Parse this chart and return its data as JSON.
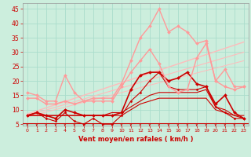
{
  "xlabel": "Vent moyen/en rafales ( km/h )",
  "bg_color": "#cceedd",
  "grid_color": "#aaddcc",
  "text_color": "#cc0000",
  "xlim": [
    -0.5,
    23.5
  ],
  "ylim": [
    4.5,
    47
  ],
  "yticks": [
    5,
    10,
    15,
    20,
    25,
    30,
    35,
    40,
    45
  ],
  "x_ticks": [
    0,
    1,
    2,
    3,
    4,
    5,
    6,
    7,
    8,
    9,
    10,
    11,
    12,
    13,
    14,
    15,
    16,
    17,
    18,
    19,
    20,
    21,
    22,
    23
  ],
  "series": [
    {
      "x": [
        0,
        1,
        2,
        3,
        4,
        5,
        6,
        7,
        8,
        9,
        10,
        11,
        12,
        13,
        14,
        15,
        16,
        17,
        18,
        19,
        20,
        21,
        22,
        23
      ],
      "y": [
        8,
        9,
        8,
        7,
        10,
        9,
        8,
        8,
        8,
        8,
        9,
        17,
        22,
        23,
        23,
        20,
        21,
        23,
        19,
        18,
        12,
        15,
        9,
        7
      ],
      "color": "#cc0000",
      "lw": 1.2,
      "marker": "D",
      "ms": 2.0
    },
    {
      "x": [
        0,
        1,
        2,
        3,
        4,
        5,
        6,
        7,
        8,
        9,
        10,
        11,
        12,
        13,
        14,
        15,
        16,
        17,
        18,
        19,
        20,
        21,
        22,
        23
      ],
      "y": [
        8,
        9,
        7,
        6,
        9,
        6,
        5,
        7,
        5,
        5,
        8,
        13,
        16,
        20,
        23,
        18,
        17,
        17,
        17,
        18,
        11,
        9,
        7,
        7
      ],
      "color": "#cc0000",
      "lw": 0.8,
      "marker": "D",
      "ms": 1.5
    },
    {
      "x": [
        0,
        1,
        2,
        3,
        4,
        5,
        6,
        7,
        8,
        9,
        10,
        11,
        12,
        13,
        14,
        15,
        16,
        17,
        18,
        19,
        20,
        21,
        22,
        23
      ],
      "y": [
        8,
        8,
        8,
        8,
        8,
        8,
        8,
        8,
        8,
        9,
        9,
        11,
        13,
        15,
        16,
        16,
        16,
        16,
        16,
        17,
        11,
        10,
        8,
        8
      ],
      "color": "#cc0000",
      "lw": 0.8,
      "marker": null,
      "ms": 0
    },
    {
      "x": [
        0,
        1,
        2,
        3,
        4,
        5,
        6,
        7,
        8,
        9,
        10,
        11,
        12,
        13,
        14,
        15,
        16,
        17,
        18,
        19,
        20,
        21,
        22,
        23
      ],
      "y": [
        8,
        8,
        8,
        8,
        8,
        8,
        8,
        8,
        8,
        8,
        8,
        10,
        12,
        13,
        14,
        14,
        14,
        14,
        14,
        14,
        10,
        9,
        8,
        7
      ],
      "color": "#cc0000",
      "lw": 0.8,
      "marker": null,
      "ms": 0
    },
    {
      "x": [
        0,
        1,
        2,
        3,
        4,
        5,
        6,
        7,
        8,
        9,
        10,
        11,
        12,
        13,
        14,
        15,
        16,
        17,
        18,
        19,
        20,
        21,
        22,
        23
      ],
      "y": [
        16,
        15,
        13,
        13,
        22,
        16,
        13,
        14,
        14,
        14,
        19,
        27,
        35,
        39,
        45,
        37,
        39,
        37,
        33,
        34,
        20,
        24,
        18,
        18
      ],
      "color": "#ff9999",
      "lw": 1.0,
      "marker": "D",
      "ms": 2.0
    },
    {
      "x": [
        0,
        1,
        2,
        3,
        4,
        5,
        6,
        7,
        8,
        9,
        10,
        11,
        12,
        13,
        14,
        15,
        16,
        17,
        18,
        19,
        20,
        21,
        22,
        23
      ],
      "y": [
        14,
        14,
        12,
        12,
        13,
        12,
        13,
        13,
        13,
        13,
        18,
        23,
        27,
        31,
        26,
        18,
        16,
        17,
        28,
        33,
        20,
        18,
        17,
        18
      ],
      "color": "#ff9999",
      "lw": 1.0,
      "marker": "D",
      "ms": 2.0
    }
  ],
  "linear_lines": [
    {
      "x0": 0,
      "x1": 23,
      "y0": 8.5,
      "y1": 33.5,
      "color": "#ffbbbb",
      "lw": 1.0
    },
    {
      "x0": 0,
      "x1": 23,
      "y0": 8.0,
      "y1": 30.0,
      "color": "#ffbbbb",
      "lw": 0.8
    },
    {
      "x0": 0,
      "x1": 23,
      "y0": 7.5,
      "y1": 27.0,
      "color": "#ffbbbb",
      "lw": 0.7
    }
  ],
  "hline_y": 5.2,
  "arrows_x": [
    0,
    1,
    2,
    3,
    4,
    5,
    6,
    7,
    8,
    9,
    10,
    11,
    12,
    13,
    14,
    15,
    16,
    17,
    18,
    19,
    20,
    21,
    22,
    23
  ]
}
